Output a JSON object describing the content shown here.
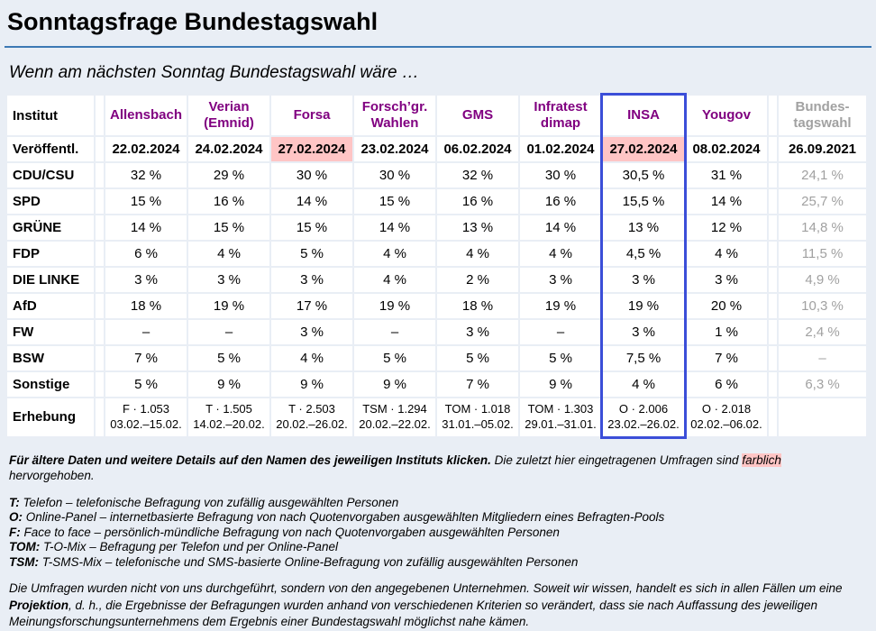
{
  "page": {
    "title": "Sonntagsfrage Bundestagswahl",
    "subtitle": "Wenn am nächsten Sonntag Bundestagswahl wäre …"
  },
  "colors": {
    "page_background": "#e9eef5",
    "rule_blue": "#3c78b4",
    "institute_purple": "#800080",
    "highlight_pink": "#ffc5c5",
    "insa_border_blue": "#3b4ed8",
    "muted_gray": "#a1a1a1"
  },
  "table": {
    "corner_label": "Institut",
    "published_label": "Veröffentl.",
    "survey_label": "Erhebung",
    "institutes": [
      "Allensbach",
      "Verian (Emnid)",
      "Forsa",
      "Forsch’gr. Wahlen",
      "GMS",
      "Infratest dimap",
      "INSA",
      "Yougov",
      "Bundes-tagswahl"
    ],
    "dates": [
      "22.02.2024",
      "24.02.2024",
      "27.02.2024",
      "23.02.2024",
      "06.02.2024",
      "01.02.2024",
      "27.02.2024",
      "08.02.2024",
      "26.09.2021"
    ],
    "date_highlight": [
      2,
      6
    ],
    "parties": [
      {
        "label": "CDU/CSU",
        "values": [
          "32 %",
          "29 %",
          "30 %",
          "30 %",
          "32 %",
          "30 %",
          "30,5 %",
          "31 %",
          "24,1 %"
        ]
      },
      {
        "label": "SPD",
        "values": [
          "15 %",
          "16 %",
          "14 %",
          "15 %",
          "16 %",
          "16 %",
          "15,5 %",
          "14 %",
          "25,7 %"
        ]
      },
      {
        "label": "GRÜNE",
        "values": [
          "14 %",
          "15 %",
          "15 %",
          "14 %",
          "13 %",
          "14 %",
          "13 %",
          "12 %",
          "14,8 %"
        ]
      },
      {
        "label": "FDP",
        "values": [
          "6 %",
          "4 %",
          "5 %",
          "4 %",
          "4 %",
          "4 %",
          "4,5 %",
          "4 %",
          "11,5 %"
        ]
      },
      {
        "label": "DIE LINKE",
        "values": [
          "3 %",
          "3 %",
          "3 %",
          "4 %",
          "2 %",
          "3 %",
          "3 %",
          "3 %",
          "4,9 %"
        ]
      },
      {
        "label": "AfD",
        "values": [
          "18 %",
          "19 %",
          "17 %",
          "19 %",
          "18 %",
          "19 %",
          "19 %",
          "20 %",
          "10,3 %"
        ]
      },
      {
        "label": "FW",
        "values": [
          "–",
          "–",
          "3 %",
          "–",
          "3 %",
          "–",
          "3 %",
          "1 %",
          "2,4 %"
        ]
      },
      {
        "label": "BSW",
        "values": [
          "7 %",
          "5 %",
          "4 %",
          "5 %",
          "5 %",
          "5 %",
          "7,5 %",
          "7 %",
          "–"
        ]
      },
      {
        "label": "Sonstige",
        "values": [
          "5 %",
          "9 %",
          "9 %",
          "9 %",
          "7 %",
          "9 %",
          "4 %",
          "6 %",
          "6,3 %"
        ]
      }
    ],
    "erhebung": [
      [
        "F · 1.053",
        "03.02.–15.02."
      ],
      [
        "T · 1.505",
        "14.02.–20.02."
      ],
      [
        "T · 2.503",
        "20.02.–26.02."
      ],
      [
        "TSM · 1.294",
        "20.02.–22.02."
      ],
      [
        "TOM · 1.018",
        "31.01.–05.02."
      ],
      [
        "TOM · 1.303",
        "29.01.–31.01."
      ],
      [
        "O · 2.006",
        "23.02.–26.02."
      ],
      [
        "O · 2.018",
        "02.02.–06.02."
      ],
      [
        "",
        ""
      ]
    ]
  },
  "notes": {
    "lead": "Für ältere Daten und weitere Details auf den Namen des jeweiligen Instituts klicken.",
    "recent_pre": " Die zuletzt hier eingetragenen Umfragen sind ",
    "recent_mark": "farblich",
    "recent_post": " hervorgehoben."
  },
  "legend": [
    {
      "abbr": "T:",
      "text": "Telefon – telefonische Befragung von zufällig ausgewählten Personen"
    },
    {
      "abbr": "O:",
      "text": "Online-Panel – internetbasierte Befragung von nach Quotenvorgaben ausgewählten Mitgliedern eines Befragten-Pools"
    },
    {
      "abbr": "F:",
      "text": "Face to face – persönlich-mündliche Befragung von nach Quotenvorgaben ausgewählten Personen"
    },
    {
      "abbr": "TOM:",
      "text": "T-O-Mix – Befragung per Telefon und per Online-Panel"
    },
    {
      "abbr": "TSM:",
      "text": "T-SMS-Mix – telefonische und SMS-basierte Online-Befragung von zufällig ausgewählten Personen"
    }
  ],
  "disclaimer": {
    "pre": "Die Umfragen wurden nicht von uns durchgeführt, sondern von den angegebenen Unternehmen. Soweit wir wissen, handelt es sich in allen Fällen um eine ",
    "bold": "Projektion",
    "post": ", d. h., die Ergebnisse der Befragungen wurden anhand von verschiedenen Kriterien so verändert, dass sie nach Auffassung des jeweiligen Meinungsforschungsunternehmens dem Ergebnis einer Bundestagswahl möglichst nahe kämen."
  }
}
